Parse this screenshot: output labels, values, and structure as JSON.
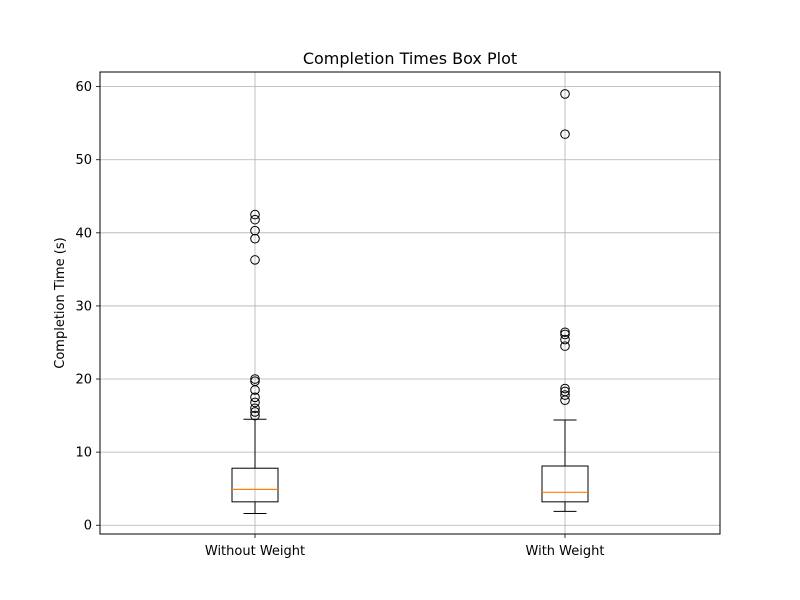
{
  "chart_data": {
    "type": "box",
    "title": "Completion Times Box Plot",
    "xlabel": "",
    "ylabel": "Completion Time (s)",
    "ylim": [
      -1.2,
      62
    ],
    "yticks": [
      0,
      10,
      20,
      30,
      40,
      50,
      60
    ],
    "grid": true,
    "categories": [
      "Without Weight",
      "With Weight"
    ],
    "boxes": [
      {
        "category": "Without Weight",
        "whisker_low": 1.6,
        "q1": 3.2,
        "median": 4.9,
        "q3": 7.8,
        "whisker_high": 14.5,
        "outliers": [
          15.0,
          15.5,
          16.0,
          16.8,
          17.5,
          18.5,
          19.7,
          20.0,
          36.3,
          39.2,
          40.3,
          41.8,
          42.5
        ]
      },
      {
        "category": "With Weight",
        "whisker_low": 1.9,
        "q1": 3.2,
        "median": 4.5,
        "q3": 8.1,
        "whisker_high": 14.4,
        "outliers": [
          17.1,
          17.8,
          18.3,
          18.7,
          24.5,
          25.4,
          26.1,
          26.4,
          53.5,
          59.0
        ]
      }
    ],
    "colors": {
      "box": "#000000",
      "median": "#ff7f0e",
      "grid": "#b0b0b0"
    }
  }
}
